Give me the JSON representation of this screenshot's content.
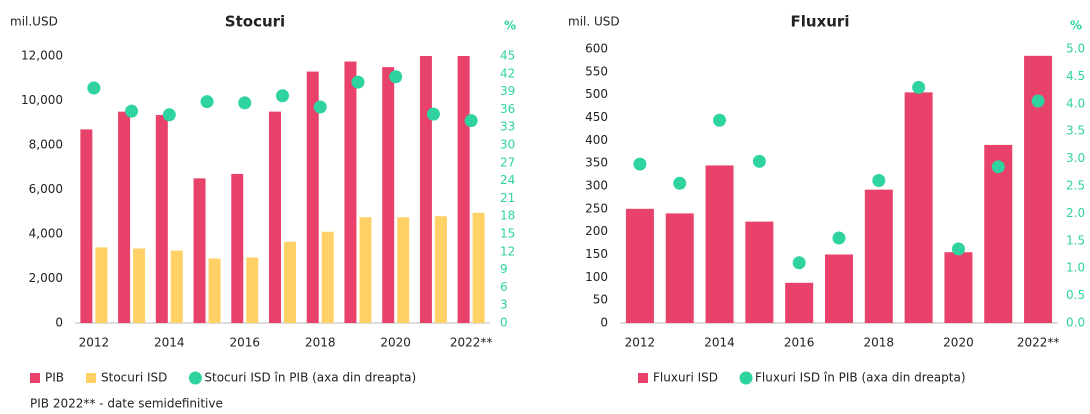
{
  "chart_data": [
    {
      "type": "bar",
      "title": "Stocuri",
      "y_label": "mil.USD",
      "y2_label": "%",
      "categories": [
        "2012",
        null,
        "2014",
        null,
        "2016",
        null,
        "2018",
        null,
        "2020",
        null,
        "2022**"
      ],
      "series": [
        {
          "name": "PIB",
          "type": "bar",
          "color": "#e8416a",
          "values": [
            8700,
            9500,
            9350,
            6500,
            6700,
            9500,
            11300,
            11750,
            11500,
            12000,
            12000
          ]
        },
        {
          "name": "Stocuri ISD",
          "type": "bar",
          "color": "#ffd166",
          "values": [
            3400,
            3350,
            3250,
            2900,
            2950,
            3650,
            4100,
            4750,
            4750,
            4800,
            4950
          ]
        },
        {
          "name": "Stocuri ISD în PIB (axa din dreapta)",
          "type": "scatter",
          "axis": "y2",
          "color": "#2ed3a0",
          "values": [
            39.6,
            35.7,
            35.1,
            37.3,
            37.1,
            38.3,
            36.4,
            40.6,
            41.5,
            35.2,
            34.1
          ]
        }
      ],
      "ylim": [
        0,
        12000
      ],
      "yticks": [
        0,
        {
          "value": 2000,
          "label": "2,000"
        },
        {
          "value": 4000,
          "label": "4,000"
        },
        {
          "value": 6000,
          "label": "6,000"
        },
        {
          "value": 8000,
          "label": "8,000"
        },
        {
          "value": 10000,
          "label": "10,000"
        },
        {
          "value": 12000,
          "label": "12,000"
        }
      ],
      "y2lim": [
        0,
        45
      ],
      "y2ticks": [
        0,
        3,
        6,
        9,
        12,
        15,
        18,
        21,
        24,
        27,
        30,
        33,
        36,
        39,
        42,
        45
      ]
    },
    {
      "type": "bar",
      "title": "Fluxuri",
      "y_label": "mil. USD",
      "y2_label": "%",
      "categories": [
        "2012",
        null,
        "2014",
        null,
        "2016",
        null,
        "2018",
        null,
        "2020",
        null,
        "2022**"
      ],
      "series": [
        {
          "name": "Fluxuri ISD",
          "type": "bar",
          "color": "#e8416a",
          "values": [
            250,
            240,
            345,
            222,
            88,
            150,
            292,
            505,
            155,
            390,
            585
          ]
        },
        {
          "name": "Fluxuri ISD în PIB (axa din dreapta)",
          "type": "scatter",
          "axis": "y2",
          "color": "#2ed3a0",
          "values": [
            2.9,
            2.55,
            3.7,
            2.95,
            1.1,
            1.55,
            2.6,
            4.3,
            1.35,
            2.85,
            4.05
          ]
        }
      ],
      "ylim": [
        0,
        600
      ],
      "yticks": [
        0,
        50,
        100,
        150,
        200,
        250,
        300,
        350,
        400,
        450,
        500,
        550,
        600
      ],
      "y2lim": [
        0,
        5
      ],
      "y2ticks": [
        {
          "value": 0,
          "label": "0.0"
        },
        0.5,
        {
          "value": 1,
          "label": "1.0"
        },
        1.5,
        {
          "value": 2,
          "label": "2.0"
        },
        2.5,
        {
          "value": 3,
          "label": "3.0"
        },
        3.5,
        {
          "value": 4,
          "label": "4.0"
        },
        4.5,
        {
          "value": 5,
          "label": "5.0"
        }
      ]
    }
  ],
  "footnote": "PIB 2022** - date semidefinitive"
}
